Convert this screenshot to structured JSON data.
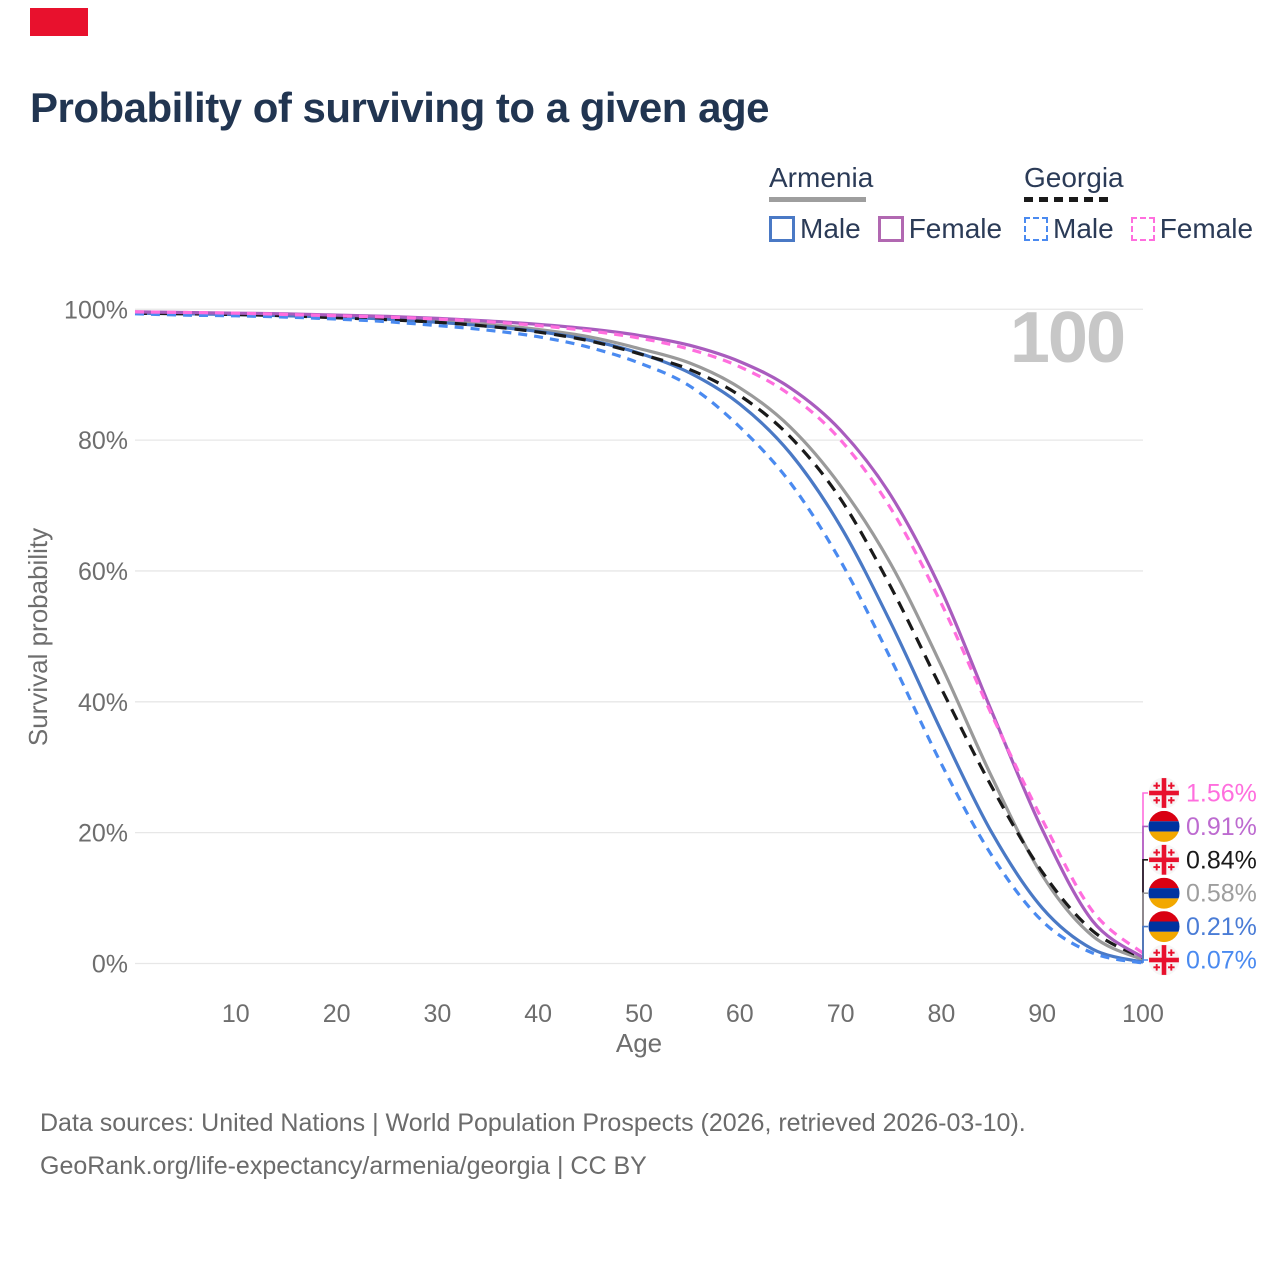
{
  "header": {
    "title": "Probability of surviving to a given age",
    "flag_fragment_color": "#e8112d"
  },
  "legend": {
    "groups": [
      {
        "label": "Armenia",
        "line_style": "solid",
        "underline_color": "#9e9e9e",
        "items": [
          {
            "label": "Male",
            "color": "#4a79c5",
            "dashed": false
          },
          {
            "label": "Female",
            "color": "#b168b1",
            "dashed": false
          }
        ]
      },
      {
        "label": "Georgia",
        "line_style": "dashed",
        "underline_color": "#1a1a1a",
        "items": [
          {
            "label": "Male",
            "color": "#4a8af0",
            "dashed": true
          },
          {
            "label": "Female",
            "color": "#ff6ede",
            "dashed": true
          }
        ]
      }
    ]
  },
  "chart_data": {
    "type": "line",
    "title": "Probability of surviving to a given age",
    "xlabel": "Age",
    "ylabel": "Survival probability",
    "xlim": [
      0,
      100
    ],
    "ylim": [
      0,
      100
    ],
    "grid": "horizontal-only",
    "watermark": "100",
    "x_ticks": [
      10,
      20,
      30,
      40,
      50,
      60,
      70,
      80,
      90,
      100
    ],
    "y_ticks": [
      {
        "value": 100,
        "label": "100%"
      },
      {
        "value": 80,
        "label": "80%"
      },
      {
        "value": 60,
        "label": "60%"
      },
      {
        "value": 40,
        "label": "40%"
      },
      {
        "value": 20,
        "label": "20%"
      },
      {
        "value": 0,
        "label": "0%"
      }
    ],
    "ages": [
      0,
      5,
      10,
      15,
      20,
      25,
      30,
      35,
      40,
      45,
      50,
      55,
      60,
      65,
      70,
      75,
      80,
      85,
      90,
      95,
      100
    ],
    "series": [
      {
        "name": "Georgia Female",
        "country": "Georgia",
        "sex": "Female",
        "flag": "georgia",
        "color": "#ff6ede",
        "label_color": "#ff6ede",
        "dashed": true,
        "end_label": "1.56%",
        "values": [
          99.6,
          99.5,
          99.4,
          99.2,
          99.0,
          98.8,
          98.5,
          98.1,
          97.5,
          96.7,
          95.6,
          93.9,
          91.2,
          86.9,
          80.0,
          69.5,
          55.0,
          38.0,
          22.0,
          8.0,
          1.56
        ]
      },
      {
        "name": "Armenia Female",
        "country": "Armenia",
        "sex": "Female",
        "flag": "armenia",
        "color": "#a95cbe",
        "label_color": "#bd6bd0",
        "dashed": false,
        "end_label": "0.91%",
        "values": [
          99.6,
          99.5,
          99.4,
          99.3,
          99.1,
          98.9,
          98.6,
          98.2,
          97.7,
          97.0,
          96.0,
          94.5,
          92.0,
          88.0,
          81.5,
          71.5,
          57.0,
          38.5,
          20.5,
          6.5,
          0.91
        ]
      },
      {
        "name": "Georgia",
        "country": "Georgia",
        "sex": "Both",
        "flag": "georgia",
        "color": "#1a1a1a",
        "label_color": "#1a1a1a",
        "dashed": true,
        "end_label": "0.84%",
        "values": [
          99.4,
          99.3,
          99.2,
          99.0,
          98.7,
          98.4,
          98.0,
          97.4,
          96.5,
          95.2,
          93.2,
          90.8,
          86.8,
          80.5,
          71.0,
          57.5,
          42.0,
          27.0,
          14.0,
          5.0,
          0.84
        ]
      },
      {
        "name": "Armenia",
        "country": "Armenia",
        "sex": "Both",
        "flag": "armenia",
        "color": "#9a9a9a",
        "label_color": "#9e9e9e",
        "dashed": false,
        "end_label": "0.58%",
        "values": [
          99.5,
          99.4,
          99.3,
          99.1,
          98.9,
          98.6,
          98.2,
          97.7,
          96.9,
          95.8,
          94.0,
          91.8,
          88.0,
          82.0,
          73.0,
          61.0,
          45.5,
          28.5,
          13.5,
          4.2,
          0.58
        ]
      },
      {
        "name": "Armenia Male",
        "country": "Armenia",
        "sex": "Male",
        "flag": "armenia",
        "color": "#4a79c5",
        "label_color": "#4a7cd6",
        "dashed": false,
        "end_label": "0.21%",
        "values": [
          99.4,
          99.3,
          99.2,
          99.0,
          98.8,
          98.5,
          98.0,
          97.4,
          96.6,
          95.3,
          93.3,
          90.3,
          85.5,
          78.0,
          66.8,
          52.0,
          35.5,
          20.0,
          8.5,
          2.2,
          0.21
        ]
      },
      {
        "name": "Georgia Male",
        "country": "Georgia",
        "sex": "Male",
        "flag": "georgia",
        "color": "#4a8af0",
        "label_color": "#4a8af0",
        "dashed": true,
        "end_label": "0.07%",
        "values": [
          99.3,
          99.1,
          99.0,
          98.8,
          98.5,
          98.1,
          97.5,
          96.8,
          95.8,
          94.2,
          91.8,
          88.3,
          82.0,
          73.5,
          61.5,
          46.5,
          30.5,
          16.5,
          6.5,
          1.6,
          0.07
        ]
      }
    ],
    "flag_colors": {
      "armenia": [
        "#d90012",
        "#0033a0",
        "#f2a800"
      ],
      "georgia_cross": "#e8112d",
      "georgia_bg": "#f6f6f6"
    }
  },
  "footer": {
    "line1": "Data sources: United Nations | World Population Prospects (2026, retrieved 2026-03-10).",
    "line2": "GeoRank.org/life-expectancy/armenia/georgia | CC BY"
  }
}
